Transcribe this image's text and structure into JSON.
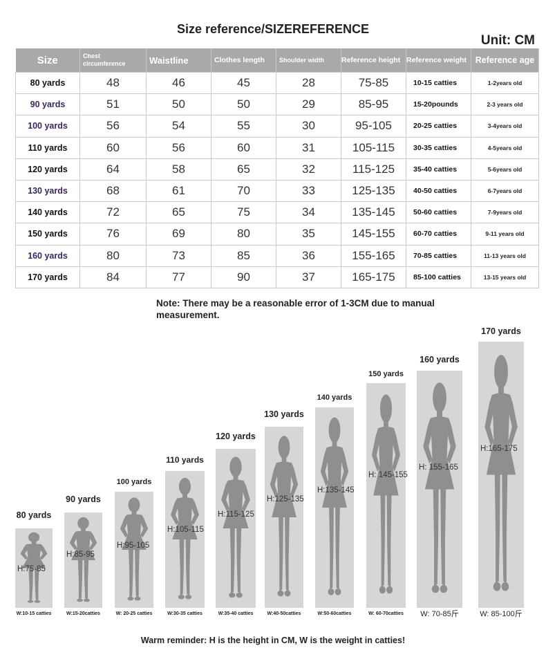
{
  "title": "Size reference/SIZEREFERENCE",
  "unit": "Unit: CM",
  "table": {
    "headers": [
      "Size",
      "Chest circumference",
      "Waistline",
      "Clothes length",
      "Shoulder width",
      "Reference height",
      "Reference weight",
      "Reference age"
    ],
    "rows": [
      {
        "size": "80 yards",
        "chest": "48",
        "waist": "46",
        "length": "45",
        "shoulder": "28",
        "height": "75-85",
        "weight": "10-15 catties",
        "age": "1-2years old"
      },
      {
        "size": "90 yards",
        "chest": "51",
        "waist": "50",
        "length": "50",
        "shoulder": "29",
        "height": "85-95",
        "weight": "15-20pounds",
        "age": "2-3 years old"
      },
      {
        "size": "100 yards",
        "chest": "56",
        "waist": "54",
        "length": "55",
        "shoulder": "30",
        "height": "95-105",
        "weight": "20-25 catties",
        "age": "3-4years old"
      },
      {
        "size": "110 yards",
        "chest": "60",
        "waist": "56",
        "length": "60",
        "shoulder": "31",
        "height": "105-115",
        "weight": "30-35 catties",
        "age": "4-5years old"
      },
      {
        "size": "120 yards",
        "chest": "64",
        "waist": "58",
        "length": "65",
        "shoulder": "32",
        "height": "115-125",
        "weight": "35-40 catties",
        "age": "5-6years old"
      },
      {
        "size": "130 yards",
        "chest": "68",
        "waist": "61",
        "length": "70",
        "shoulder": "33",
        "height": "125-135",
        "weight": "40-50 catties",
        "age": "6-7years old"
      },
      {
        "size": "140 yards",
        "chest": "72",
        "waist": "65",
        "length": "75",
        "shoulder": "34",
        "height": "135-145",
        "weight": "50-60 catties",
        "age": "7-9years old"
      },
      {
        "size": "150 yards",
        "chest": "76",
        "waist": "69",
        "length": "80",
        "shoulder": "35",
        "height": "145-155",
        "weight": "60-70 catties",
        "age": "9-11 years old"
      },
      {
        "size": "160 yards",
        "chest": "80",
        "waist": "73",
        "length": "85",
        "shoulder": "36",
        "height": "155-165",
        "weight": "70-85 catties",
        "age": "11-13 years old"
      },
      {
        "size": "170 yards",
        "chest": "84",
        "waist": "77",
        "length": "90",
        "shoulder": "37",
        "height": "165-175",
        "weight": "85-100 catties",
        "age": "13-15 years old"
      }
    ]
  },
  "note": "Note: There may be a reasonable error of 1-3CM due to manual measurement.",
  "figures": [
    {
      "label": "80 yards",
      "h": "H:75-85",
      "w": "W:10-15 catties"
    },
    {
      "label": "90 yards",
      "h": "H:85-95",
      "w": "W:15-20catties"
    },
    {
      "label": "100 yards",
      "h": "H:95-105",
      "w": "W: 20-25 catties"
    },
    {
      "label": "110 yards",
      "h": "H:105-115",
      "w": "W:30-35 catties"
    },
    {
      "label": "120 yards",
      "h": "H:115-125",
      "w": "W:35-40 catties"
    },
    {
      "label": "130 yards",
      "h": "H:125-135",
      "w": "W:40-50catties"
    },
    {
      "label": "140 yards",
      "h": "H:135-145",
      "w": "W:50-60catties"
    },
    {
      "label": "150 yards",
      "h": "H: 145-155",
      "w": "W: 60-70catties"
    },
    {
      "label": "160 yards",
      "h": "H: 155-165",
      "w": "W:  70-85斤"
    },
    {
      "label": "170 yards",
      "h": "H:165-175",
      "w": "W: 85-100斤"
    }
  ],
  "reminder": "Warm reminder: H is the height in CM, W is the weight in catties!",
  "colors": {
    "header_bg": "#a9a9a9",
    "panel_bg": "#d6d6d6",
    "silhouette": "#8f8f8f"
  }
}
